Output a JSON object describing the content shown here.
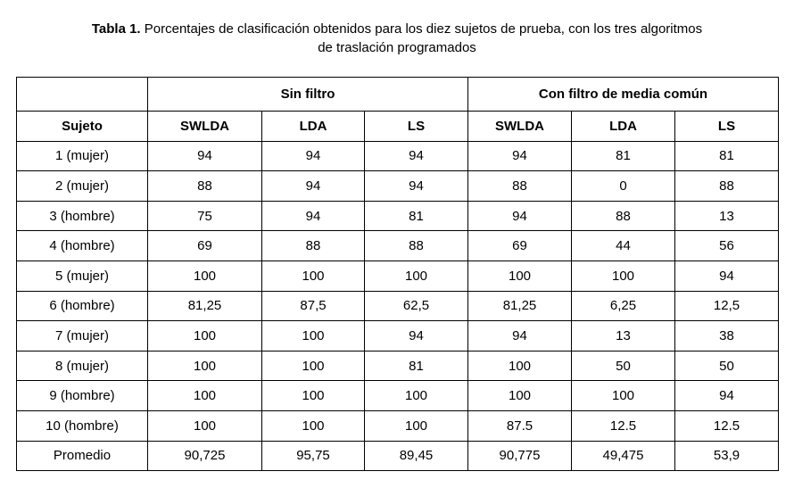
{
  "caption": {
    "label": "Tabla 1.",
    "line1": "Porcentajes de clasificación obtenidos para los diez sujetos de prueba, con los tres algoritmos",
    "line2": "de traslación programados"
  },
  "table": {
    "groups": [
      "Sin filtro",
      "Con filtro de media común"
    ],
    "columns": [
      "Sujeto",
      "SWLDA",
      "LDA",
      "LS",
      "SWLDA",
      "LDA",
      "LS"
    ],
    "rows": [
      [
        "1 (mujer)",
        "94",
        "94",
        "94",
        "94",
        "81",
        "81"
      ],
      [
        "2 (mujer)",
        "88",
        "94",
        "94",
        "88",
        "0",
        "88"
      ],
      [
        "3 (hombre)",
        "75",
        "94",
        "81",
        "94",
        "88",
        "13"
      ],
      [
        "4 (hombre)",
        "69",
        "88",
        "88",
        "69",
        "44",
        "56"
      ],
      [
        "5 (mujer)",
        "100",
        "100",
        "100",
        "100",
        "100",
        "94"
      ],
      [
        "6 (hombre)",
        "81,25",
        "87,5",
        "62,5",
        "81,25",
        "6,25",
        "12,5"
      ],
      [
        "7 (mujer)",
        "100",
        "100",
        "94",
        "94",
        "13",
        "38"
      ],
      [
        "8 (mujer)",
        "100",
        "100",
        "81",
        "100",
        "50",
        "50"
      ],
      [
        "9 (hombre)",
        "100",
        "100",
        "100",
        "100",
        "100",
        "94"
      ],
      [
        "10 (hombre)",
        "100",
        "100",
        "100",
        "87.5",
        "12.5",
        "12.5"
      ],
      [
        "Promedio",
        "90,725",
        "95,75",
        "89,45",
        "90,775",
        "49,475",
        "53,9"
      ]
    ]
  }
}
